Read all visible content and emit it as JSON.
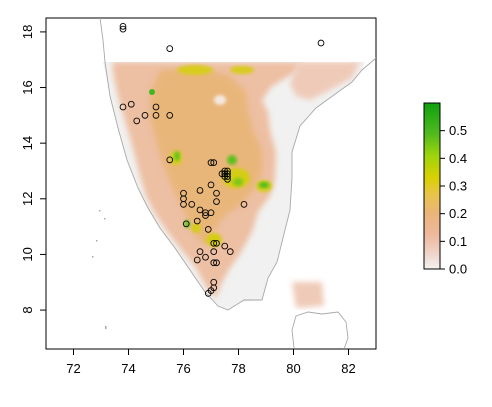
{
  "chart_data": {
    "type": "heatmap",
    "title": "",
    "xlabel": "",
    "ylabel": "",
    "xlim": [
      71,
      83
    ],
    "ylim": [
      6.6,
      18.5
    ],
    "x_ticks": [
      "72",
      "74",
      "76",
      "78",
      "80",
      "82"
    ],
    "x_tick_values": [
      72,
      74,
      76,
      78,
      80,
      82
    ],
    "y_ticks": [
      "8",
      "10",
      "12",
      "14",
      "16",
      "18"
    ],
    "y_tick_values": [
      8,
      10,
      12,
      14,
      16,
      18
    ],
    "colorbar": {
      "range": [
        0,
        0.6
      ],
      "tick_labels": [
        "0.0",
        "0.1",
        "0.2",
        "0.3",
        "0.4",
        "0.5"
      ],
      "tick_values": [
        0,
        0.1,
        0.2,
        0.3,
        0.4,
        0.5
      ],
      "colors": [
        "#f2f2f2",
        "#eeb99f",
        "#ebb47d",
        "#e8c44a",
        "#c4d900",
        "#6fc21e",
        "#2fa21a",
        "#10a00f"
      ]
    },
    "colors": {
      "land_outline": "#a8a8a8",
      "background_raster": "#f2f2f2",
      "suitability_low": "#eec0a8",
      "suitability_mid": "#e8bd6c",
      "suitability_high": "#c9d40a",
      "suitability_max": "#4dbb22"
    },
    "occurrence_points": [
      [
        73.8,
        18.2
      ],
      [
        73.8,
        18.1
      ],
      [
        75.5,
        17.4
      ],
      [
        81.0,
        17.6
      ],
      [
        73.8,
        15.3
      ],
      [
        74.1,
        15.4
      ],
      [
        74.3,
        14.8
      ],
      [
        74.6,
        15.0
      ],
      [
        75.0,
        15.3
      ],
      [
        75.0,
        15.0
      ],
      [
        75.5,
        15.0
      ],
      [
        75.5,
        13.4
      ],
      [
        77.0,
        13.3
      ],
      [
        77.1,
        13.3
      ],
      [
        77.5,
        13.0
      ],
      [
        77.6,
        13.0
      ],
      [
        77.5,
        12.9
      ],
      [
        77.6,
        12.9
      ],
      [
        77.5,
        12.8
      ],
      [
        77.6,
        12.8
      ],
      [
        77.4,
        12.9
      ],
      [
        77.6,
        12.7
      ],
      [
        76.0,
        12.2
      ],
      [
        76.0,
        12.0
      ],
      [
        76.0,
        11.8
      ],
      [
        76.3,
        11.8
      ],
      [
        76.6,
        12.3
      ],
      [
        77.0,
        12.5
      ],
      [
        77.2,
        12.2
      ],
      [
        77.2,
        11.9
      ],
      [
        78.2,
        11.8
      ],
      [
        76.6,
        11.6
      ],
      [
        76.8,
        11.5
      ],
      [
        76.8,
        11.4
      ],
      [
        77.0,
        11.5
      ],
      [
        76.1,
        11.1
      ],
      [
        76.5,
        11.2
      ],
      [
        76.9,
        10.9
      ],
      [
        77.1,
        10.4
      ],
      [
        77.2,
        10.4
      ],
      [
        77.5,
        10.3
      ],
      [
        77.7,
        10.1
      ],
      [
        76.6,
        10.1
      ],
      [
        76.8,
        9.9
      ],
      [
        77.1,
        10.1
      ],
      [
        76.5,
        9.8
      ],
      [
        77.1,
        9.7
      ],
      [
        77.2,
        9.7
      ],
      [
        77.1,
        9.0
      ],
      [
        77.1,
        8.8
      ],
      [
        77.0,
        8.7
      ],
      [
        76.9,
        8.6
      ]
    ]
  }
}
